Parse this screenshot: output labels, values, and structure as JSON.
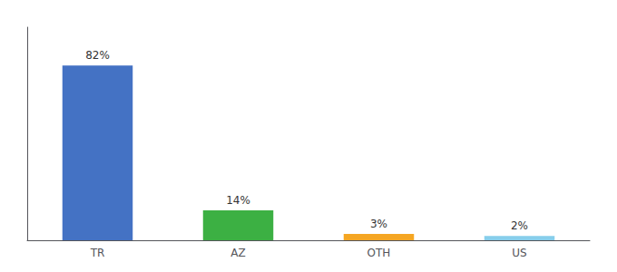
{
  "chart_data": {
    "type": "bar",
    "categories": [
      "TR",
      "AZ",
      "OTH",
      "US"
    ],
    "values": [
      82,
      14,
      3,
      2
    ],
    "value_labels": [
      "82%",
      "14%",
      "3%",
      "2%"
    ],
    "colors": [
      "#4472c4",
      "#3cb043",
      "#f5a623",
      "#87ceeb"
    ],
    "ylim": [
      0,
      100
    ],
    "data_labels": true,
    "tick_labels": "x",
    "grid": false
  }
}
